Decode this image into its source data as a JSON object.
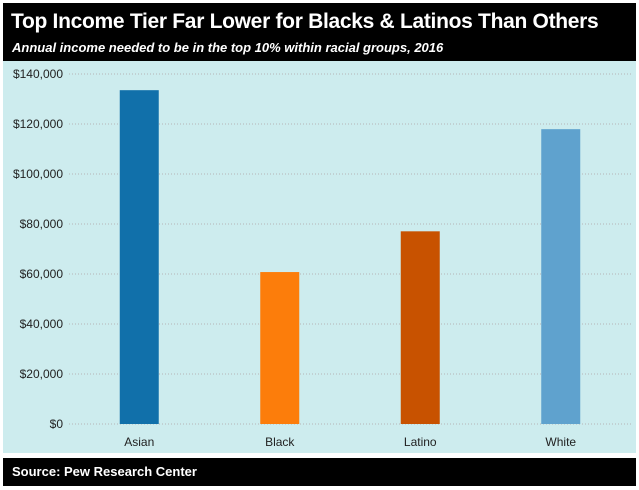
{
  "header": {
    "title": "Top Income Tier Far Lower for Blacks & Latinos Than Others",
    "subtitle": "Annual income needed to be in the top 10% within racial groups, 2016"
  },
  "footer": {
    "source": "Source: Pew Research Center"
  },
  "colors": {
    "plot_background": "#cdecee",
    "grid": "#b5b5b5",
    "bars": [
      "#1170aa",
      "#fc7d0b",
      "#c85200",
      "#5fa2ce"
    ]
  },
  "chart_data": {
    "type": "bar",
    "categories": [
      "Asian",
      "Black",
      "Latino",
      "White"
    ],
    "values": [
      133529,
      60777,
      77072,
      117936
    ],
    "ylim": [
      0,
      140000
    ],
    "yticks": [
      0,
      20000,
      40000,
      60000,
      80000,
      100000,
      120000,
      140000
    ],
    "ytick_labels": [
      "$0",
      "$20,000",
      "$40,000",
      "$60,000",
      "$80,000",
      "$100,000",
      "$120,000",
      "$140,000"
    ],
    "grid": true,
    "legend": "none"
  }
}
